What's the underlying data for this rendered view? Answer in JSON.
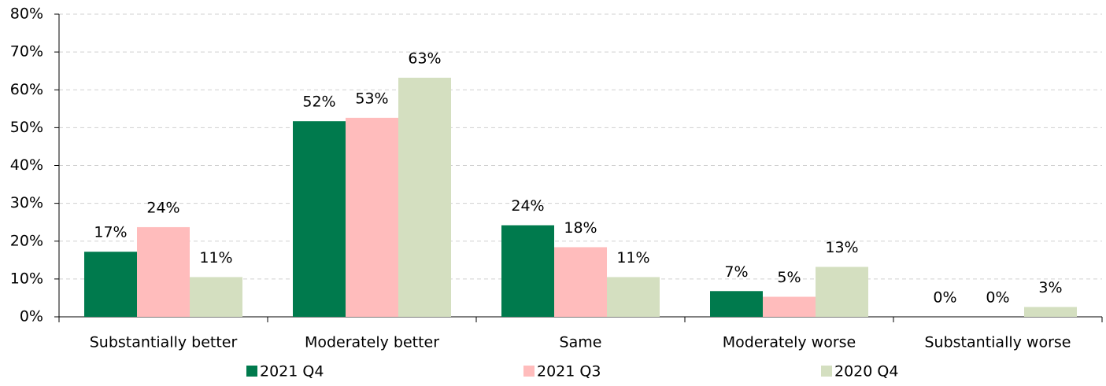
{
  "chart_data": {
    "type": "bar",
    "categories": [
      "Substantially better",
      "Moderately better",
      "Same",
      "Moderately worse",
      "Substantially worse"
    ],
    "series": [
      {
        "name": "2021 Q4",
        "color": "#007a4d",
        "values": [
          17.2,
          51.7,
          24.2,
          6.8,
          0
        ],
        "value_labels": [
          "17%",
          "52%",
          "24%",
          "7%",
          "0%"
        ]
      },
      {
        "name": "2021 Q3",
        "color": "#ffbcbc",
        "values": [
          23.7,
          52.6,
          18.4,
          5.3,
          0
        ],
        "value_labels": [
          "24%",
          "53%",
          "18%",
          "5%",
          "0%"
        ]
      },
      {
        "name": "2020 Q4",
        "color": "#d4dfc0",
        "values": [
          10.5,
          63.2,
          10.5,
          13.2,
          2.6
        ],
        "value_labels": [
          "11%",
          "63%",
          "11%",
          "13%",
          "3%"
        ]
      }
    ],
    "ylim": [
      0,
      80
    ],
    "yticks": [
      {
        "value": 0,
        "label": "0%"
      },
      {
        "value": 10,
        "label": "10%"
      },
      {
        "value": 20,
        "label": "20%"
      },
      {
        "value": 30,
        "label": "30%"
      },
      {
        "value": 40,
        "label": "40%"
      },
      {
        "value": 50,
        "label": "50%"
      },
      {
        "value": 60,
        "label": "60%"
      },
      {
        "value": 70,
        "label": "70%"
      },
      {
        "value": 80,
        "label": "80%"
      }
    ],
    "grid": true,
    "legend": "bottom"
  }
}
